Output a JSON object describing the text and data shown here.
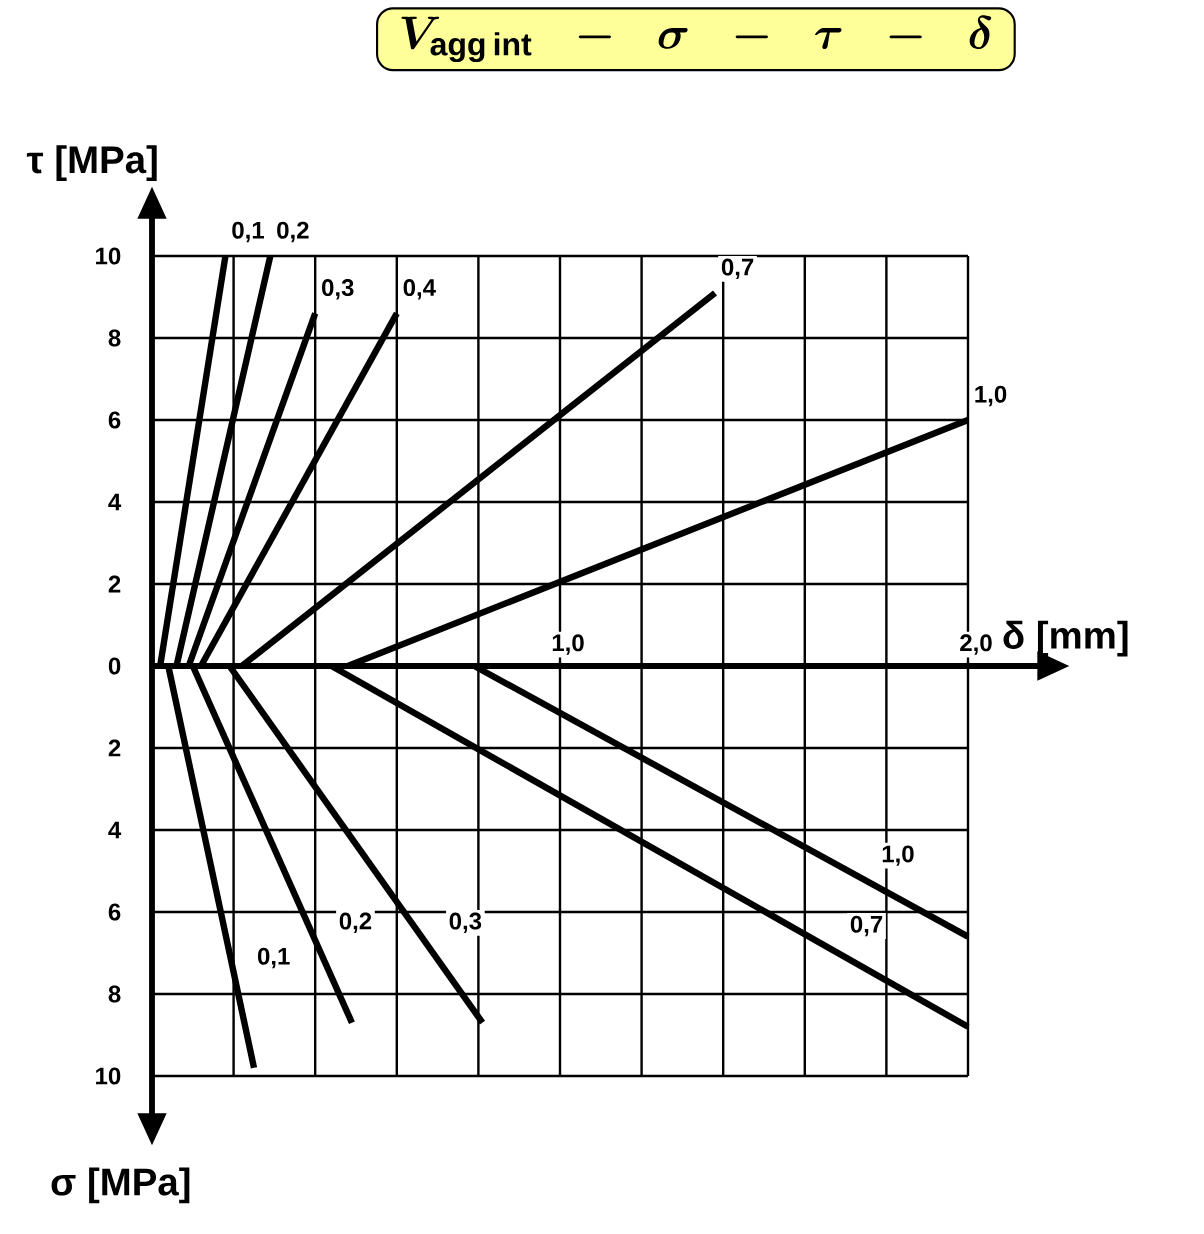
{
  "chart_data": {
    "type": "line",
    "title": "\\boldsymbol{V_{\\mathrm{agg\\,int}}\\;\\;-\\;\\;\\sigma\\;\\;-\\;\\;\\tau\\;\\;-\\;\\;\\delta}",
    "xlabel": "δ [mm]",
    "ylabel": "τ [MPa]",
    "annotations": [
      "σ [MPa]"
    ],
    "xlim": [
      0,
      2
    ],
    "ylim": [
      -10,
      10
    ],
    "xticks": [
      {
        "value": 0.2,
        "label": null
      },
      {
        "value": 0.4,
        "label": null
      },
      {
        "value": 0.6,
        "label": null
      },
      {
        "value": 0.8,
        "label": null
      },
      {
        "value": 1,
        "label": "1,0"
      },
      {
        "value": 1.2,
        "label": null
      },
      {
        "value": 1.4,
        "label": null
      },
      {
        "value": 1.6,
        "label": null
      },
      {
        "value": 1.8,
        "label": null
      },
      {
        "value": 2,
        "label": "2,0"
      }
    ],
    "yticks": [
      {
        "value": -10,
        "label": "10"
      },
      {
        "value": -8,
        "label": "8"
      },
      {
        "value": -6,
        "label": "6"
      },
      {
        "value": -4,
        "label": "4"
      },
      {
        "value": -2,
        "label": "2"
      },
      0,
      2,
      4,
      6,
      8,
      10
    ],
    "grid": true,
    "series": [
      {
        "name": "0,1",
        "color": "#000000",
        "x": [
          0.02,
          0.18
        ],
        "values": [
          0,
          10
        ]
      },
      {
        "name": "0,2",
        "color": "#000000",
        "x": [
          0.06,
          0.29
        ],
        "values": [
          0,
          10
        ]
      },
      {
        "name": "0,3",
        "color": "#000000",
        "x": [
          0.09,
          0.4
        ],
        "values": [
          0,
          8.6
        ]
      },
      {
        "name": "0,4",
        "color": "#000000",
        "x": [
          0.12,
          0.6
        ],
        "values": [
          0,
          8.6
        ]
      },
      {
        "name": "0,7",
        "color": "#000000",
        "x": [
          0.22,
          1.38
        ],
        "values": [
          0,
          9.1
        ]
      },
      {
        "name": "1,0",
        "color": "#000000",
        "x": [
          0.48,
          2
        ],
        "values": [
          0,
          6
        ]
      },
      {
        "name": "0,1",
        "color": "#000000",
        "x": [
          0.04,
          0.25
        ],
        "values": [
          0,
          -9.8
        ]
      },
      {
        "name": "0,2",
        "color": "#000000",
        "x": [
          0.1,
          0.49
        ],
        "values": [
          0,
          -8.7
        ]
      },
      {
        "name": "0,3",
        "color": "#000000",
        "x": [
          0.19,
          0.81
        ],
        "values": [
          0,
          -8.7
        ]
      },
      {
        "name": "0,7",
        "color": "#000000",
        "x": [
          0.44,
          2
        ],
        "values": [
          0,
          -8.8
        ]
      },
      {
        "name": "1,0",
        "color": "#000000",
        "x": [
          0.79,
          2
        ],
        "values": [
          0,
          -6.6
        ]
      }
    ]
  }
}
